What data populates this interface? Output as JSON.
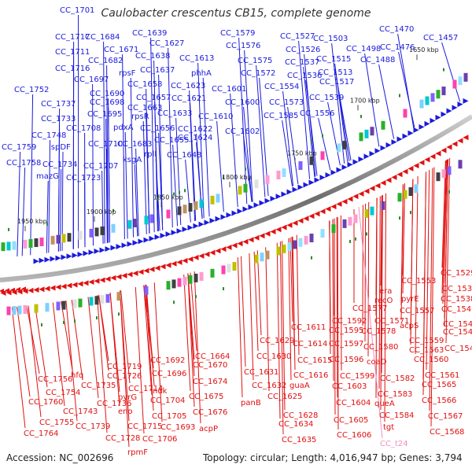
{
  "title": "Caulobacter crescentus CB15, complete genome",
  "footer": {
    "accession": "Accession: NC_002696",
    "summary": "Topology: circular; Length: 4,016,947 bp; Genes: 3,794"
  },
  "colors": {
    "forward": "#1a1adc",
    "reverse": "#e01010",
    "rna": "#f090c0",
    "backbone": "#888888",
    "marker": "#2a8a2a"
  },
  "scale_ticks": [
    "1650 kbp",
    "1700 kbp",
    "1750 kbp",
    "1800 kbp",
    "1850 kbp",
    "1900 kbp",
    "1950 kbp"
  ],
  "forward_labels": [
    "CC_1701",
    "CC_1717",
    "CC_1684",
    "CC_1639",
    "CC_1579",
    "CC_1527",
    "CC_1470",
    "CC_1711",
    "CC_1671",
    "CC_1627",
    "CC_1576",
    "CC_1526",
    "CC_1503",
    "CC_1457",
    "CC_1716",
    "CC_1682",
    "CC_1638",
    "CC_1613",
    "CC_1575",
    "CC_1537",
    "CC_1515",
    "CC_1498",
    "CC_1476",
    "CC_1697",
    "rpsF",
    "CC_1637",
    "phhA",
    "CC_1572",
    "CC_1536",
    "CC_1513",
    "CC_1488",
    "CC_1690",
    "CC_1658",
    "CC_1623",
    "CC_1554",
    "CC_1517",
    "CC_1752",
    "CC_1698",
    "CC_1657",
    "CC_1601",
    "CC_1737",
    "CC_1663",
    "CC_1621",
    "CC_1600",
    "CC_1573",
    "CC_1539",
    "CC_1733",
    "CC_1695",
    "rpsR",
    "CC_1633",
    "CC_1610",
    "CC_1585",
    "CC_1556",
    "CC_1748",
    "CC_1708",
    "pdxA",
    "CC_1656",
    "CC_1622",
    "CC_1602",
    "CC_1759",
    "ispDF",
    "CC_1710",
    "CC_1683",
    "CC_1655",
    "CC_1624",
    "CC_1758",
    "CC_1734",
    "CC_1707",
    "ksgA",
    "rplI",
    "CC_1648",
    "mazG",
    "CC_1723"
  ],
  "reverse_labels": [
    "CC_1529",
    "CC_1553",
    "CC_1533",
    "era",
    "pyrE",
    "CC_1538",
    "recO",
    "CC_1541",
    "CC_1577",
    "CC_1557",
    "CC_1542",
    "CC_1592",
    "CC_1571",
    "acpS",
    "CC_1611",
    "CC_1595",
    "CC_1578",
    "CC_1546",
    "CC_1629",
    "CC_1614",
    "CC_1597",
    "CC_1580",
    "CC_1559",
    "CC_1548",
    "CC_1630",
    "CC_1596",
    "coaD",
    "CC_1563",
    "CC_1615",
    "CC_1560",
    "CC_1664",
    "CC_1631",
    "CC_1616",
    "CC_1599",
    "CC_1582",
    "CC_1561",
    "CC_1692",
    "CC_1670",
    "CC_1632",
    "guaA",
    "CC_1603",
    "CC_1565",
    "CC_1719",
    "CC_1696",
    "CC_1625",
    "CC_1583",
    "CC_1756",
    "hfq",
    "CC_1726",
    "CC_1674",
    "CC_1604",
    "queA",
    "CC_1566",
    "CC_1754",
    "CC_1735",
    "CC_1714",
    "ndk",
    "CC_1675",
    "panB",
    "CC_1628",
    "CC_1584",
    "CC_1567",
    "CC_1760",
    "pyrG",
    "CC_1704",
    "CC_1676",
    "CC_1605",
    "tgt",
    "CC_1743",
    "CC_1736",
    "CC_1705",
    "CC_1634",
    "CC_1755",
    "eno",
    "CC_1693",
    "acpP",
    "CC_1606",
    "CC_1568",
    "CC_1739",
    "CC_1715",
    "CC_1635",
    "CC_1764",
    "CC_1728",
    "CC_1706",
    "rpmF"
  ],
  "rna_labels": [
    "CC_t24"
  ]
}
